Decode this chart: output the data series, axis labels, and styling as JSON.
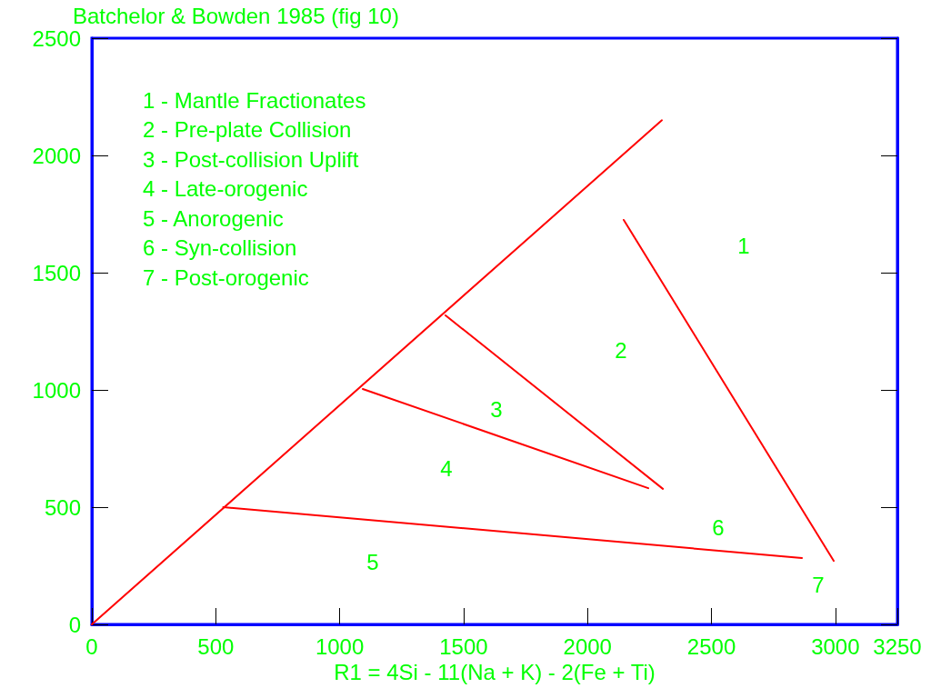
{
  "chart_data": {
    "type": "line",
    "title": "Batchelor & Bowden 1985 (fig 10)",
    "xlabel": "R1 = 4Si - 11(Na + K) - 2(Fe + Ti)",
    "xlim": [
      0,
      3250
    ],
    "xticks": [
      0,
      500,
      1000,
      1500,
      2000,
      2500,
      3000,
      3250
    ],
    "ylim": [
      0,
      2500
    ],
    "yticks": [
      0,
      500,
      1000,
      1500,
      2000,
      2500
    ],
    "grid": false,
    "marker": "none",
    "line_style": "solid",
    "series": [
      {
        "color": "#ff0000",
        "x": [
          0,
          2300
        ],
        "values": [
          0,
          2150
        ]
      },
      {
        "color": "#ff0000",
        "x": [
          530,
          2865
        ],
        "values": [
          500,
          283
        ]
      },
      {
        "color": "#ff0000",
        "x": [
          1093,
          2245
        ],
        "values": [
          1004,
          581
        ]
      },
      {
        "color": "#ff0000",
        "x": [
          1427,
          2304
        ],
        "values": [
          1318,
          578
        ]
      },
      {
        "color": "#ff0000",
        "x": [
          2146,
          2993
        ],
        "values": [
          1725,
          271
        ]
      }
    ],
    "annotations": [
      "1 - Mantle Fractionates",
      "2 - Pre-plate Collision",
      "3 - Post-collision Uplift",
      "4 - Late-orogenic",
      "5 - Anorogenic",
      "6 - Syn-collision",
      "7 - Post-orogenic",
      "1",
      "2",
      "3",
      "4",
      "5",
      "6",
      "7"
    ]
  }
}
